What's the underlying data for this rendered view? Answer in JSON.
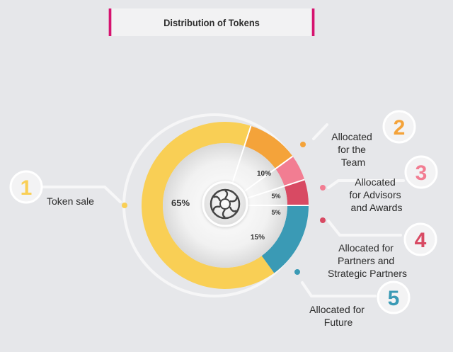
{
  "title": "Distribution of Tokens",
  "chart_data": {
    "type": "pie",
    "categories": [
      "Token sale",
      "Allocated for the Team",
      "Allocated for Advisors and Awards",
      "Allocated for Partners and Strategic Partners",
      "Allocated for Future"
    ],
    "values": [
      65,
      10,
      5,
      5,
      15
    ],
    "value_labels": [
      "65%",
      "10%",
      "5%",
      "5%",
      "15%"
    ],
    "numbers": [
      "1",
      "2",
      "3",
      "4",
      "5"
    ],
    "colors": [
      "#f9cf55",
      "#f4a33a",
      "#f27d92",
      "#d84a63",
      "#3a9ab5"
    ]
  }
}
